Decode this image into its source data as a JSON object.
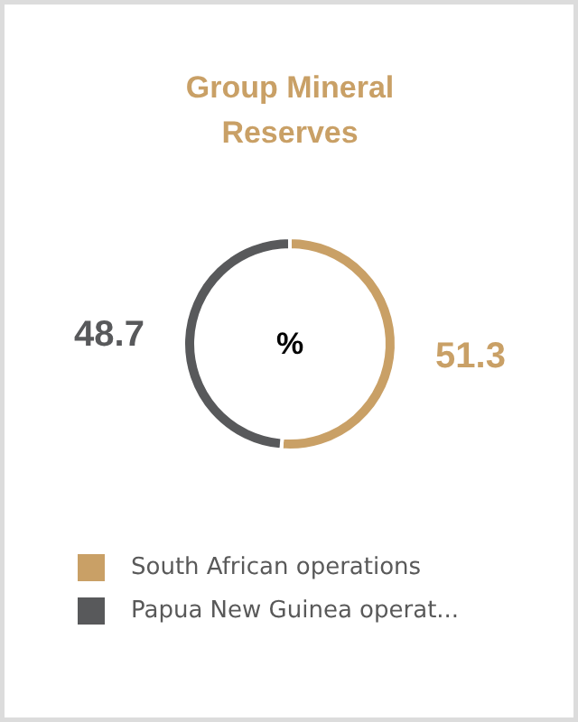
{
  "chart_data": {
    "type": "donut",
    "title": "Group Mineral Reserves",
    "categories": [
      "South African operations",
      "Papua New Guinea operat..."
    ],
    "values": [
      51.3,
      48.7
    ],
    "colors": [
      "#c9a066",
      "#58595b"
    ],
    "data_labels": true,
    "legend": "bottom",
    "annotations": [
      "%"
    ]
  }
}
